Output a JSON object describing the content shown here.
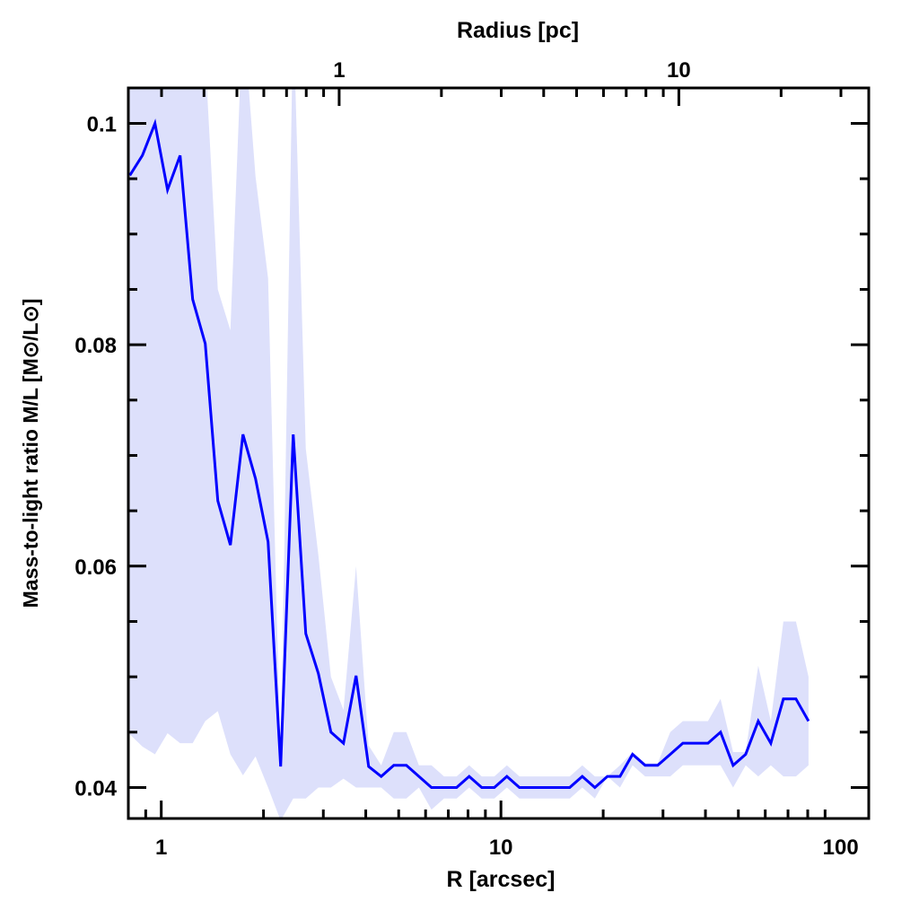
{
  "chart_data": {
    "type": "line",
    "title": "",
    "xlabel": "R [arcsec]",
    "ylabel": "Mass-to-light ratio M/L [M⊙/L⊙]",
    "top_xlabel": "Radius [pc]",
    "xscale": "log",
    "xlim": [
      0.8,
      121
    ],
    "ylim": [
      0.0372,
      0.1032
    ],
    "x_ticks": [
      1,
      10,
      100
    ],
    "x_tick_labels": [
      "1",
      "10",
      "100"
    ],
    "y_ticks": [
      0.04,
      0.06,
      0.08,
      0.1
    ],
    "y_tick_labels": [
      "0.04",
      "0.06",
      "0.08",
      "0.1"
    ],
    "top_ticks_pc": [
      1,
      10
    ],
    "top_tick_labels": [
      "1",
      "10"
    ],
    "arcsec_per_pc": 3.34,
    "grid": false,
    "colors": {
      "line": "#0000ff",
      "band": "#dde0fb"
    },
    "series": [
      {
        "name": "M/L",
        "log10_x_start": -0.0925,
        "log10_x_step": 0.037,
        "values": [
          0.0953,
          0.0971,
          0.1,
          0.094,
          0.0971,
          0.0841,
          0.0801,
          0.0659,
          0.0619,
          0.0719,
          0.0679,
          0.0622,
          0.0419,
          0.0719,
          0.0539,
          0.0503,
          0.045,
          0.044,
          0.0501,
          0.0419,
          0.041,
          0.042,
          0.042,
          0.041,
          0.04,
          0.04,
          0.04,
          0.041,
          0.04,
          0.04,
          0.041,
          0.04,
          0.04,
          0.04,
          0.04,
          0.04,
          0.041,
          0.04,
          0.041,
          0.041,
          0.043,
          0.042,
          0.042,
          0.043,
          0.044,
          0.044,
          0.044,
          0.045,
          0.042,
          0.043,
          0.046,
          0.044,
          0.048,
          0.048,
          0.046
        ],
        "upper": [
          0.11,
          0.11,
          0.11,
          0.11,
          0.11,
          0.11,
          0.106,
          0.085,
          0.0813,
          0.11,
          0.0952,
          0.086,
          0.042,
          0.11,
          0.0706,
          0.061,
          0.05,
          0.047,
          0.06,
          0.0438,
          0.042,
          0.045,
          0.045,
          0.042,
          0.042,
          0.041,
          0.041,
          0.042,
          0.041,
          0.041,
          0.042,
          0.041,
          0.041,
          0.041,
          0.041,
          0.041,
          0.042,
          0.041,
          0.041,
          0.042,
          0.0432,
          0.0422,
          0.0422,
          0.045,
          0.046,
          0.046,
          0.046,
          0.048,
          0.0432,
          0.0432,
          0.051,
          0.046,
          0.055,
          0.055,
          0.05
        ],
        "lower": [
          0.0448,
          0.0437,
          0.043,
          0.0449,
          0.044,
          0.044,
          0.046,
          0.0469,
          0.043,
          0.0411,
          0.0428,
          0.04,
          0.037,
          0.039,
          0.039,
          0.04,
          0.04,
          0.0408,
          0.04,
          0.04,
          0.04,
          0.039,
          0.039,
          0.04,
          0.038,
          0.039,
          0.039,
          0.04,
          0.039,
          0.039,
          0.04,
          0.039,
          0.039,
          0.039,
          0.039,
          0.039,
          0.04,
          0.039,
          0.041,
          0.04,
          0.042,
          0.041,
          0.041,
          0.041,
          0.042,
          0.042,
          0.042,
          0.042,
          0.04,
          0.042,
          0.041,
          0.042,
          0.041,
          0.041,
          0.042
        ]
      }
    ]
  }
}
